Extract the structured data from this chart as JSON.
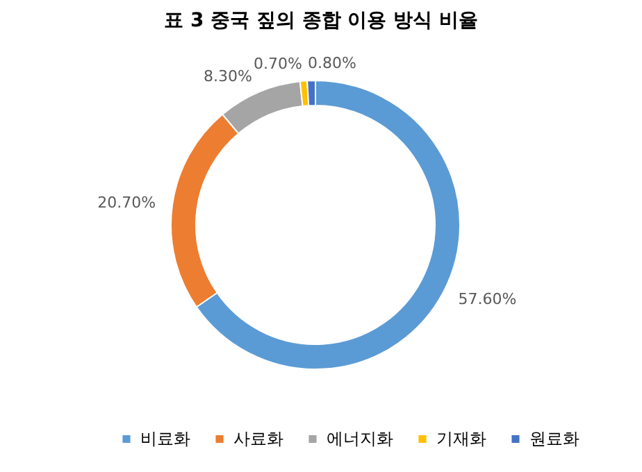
{
  "chart_data": {
    "type": "donut",
    "title": "표 3 중국 짚의 종합 이용 방식 비율",
    "categories": [
      "비료화",
      "사료화",
      "에너지화",
      "기재화",
      "원료화"
    ],
    "values": [
      57.6,
      20.7,
      8.3,
      0.7,
      0.8
    ],
    "colors": [
      "#5b9bd5",
      "#ed7d31",
      "#a5a5a5",
      "#ffc000",
      "#4472c4"
    ],
    "value_labels": [
      "57.60%",
      "20.70%",
      "8.30%",
      "0.70%",
      "0.80%"
    ],
    "legend": "bottom"
  }
}
